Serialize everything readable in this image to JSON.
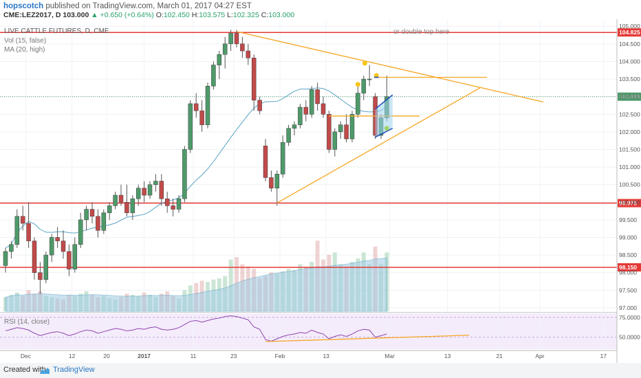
{
  "header": {
    "author": "hopscotch",
    "published_text": "published on TradingView.com, March 01, 2017 04:27 EST",
    "symbol": "CME:LEZ2017, D",
    "last": "103.000",
    "change": "▲ +0.650 (+0.64%)",
    "ohlc": {
      "o_label": "O:",
      "o": "102.450",
      "h_label": "H:",
      "h": "103.575",
      "l_label": "L:",
      "l": "102.325",
      "c_label": "C:",
      "c": "103.000"
    }
  },
  "legend": {
    "title": "LIVE CATTLE FUTURES, D, CME",
    "vol": "Vol (15, false)",
    "ma": "MA (20, high)",
    "rsi": "RSI (14, close)"
  },
  "annotation": "or double top here",
  "footer": {
    "created_with": "Created with",
    "brand": "TradingView"
  },
  "colors": {
    "up": "#4e9a6a",
    "down": "#c24a4a",
    "level": "#e53935",
    "trend": "#f5a623",
    "ma": "#5aa3c4",
    "rsi": "#8e44ad",
    "dot": "#f5c518"
  },
  "chart_data": {
    "type": "candlestick",
    "title": "LIVE CATTLE FUTURES, D, CME",
    "x_tick_labels": [
      "Dec",
      "12",
      "20",
      "2017",
      "11",
      "23",
      "Feb",
      "13",
      "Mar",
      "13",
      "21",
      "Apr",
      "17"
    ],
    "y_tick_labels": [
      "105.000",
      "104.500",
      "104.000",
      "103.500",
      "103.000",
      "102.500",
      "102.000",
      "101.500",
      "101.000",
      "100.500",
      "100.000",
      "99.500",
      "99.000",
      "98.500",
      "98.000",
      "97.500",
      "97.000"
    ],
    "ylim": [
      96.9,
      105.2
    ],
    "horizontal_levels": [
      "104.825",
      "99.975",
      "98.150"
    ],
    "last_price": "103.000",
    "candles": [
      [
        98.2,
        98.7,
        98.0,
        98.6
      ],
      [
        98.6,
        98.9,
        98.4,
        98.8
      ],
      [
        98.8,
        99.8,
        98.7,
        99.6
      ],
      [
        99.6,
        99.9,
        99.2,
        99.4
      ],
      [
        99.4,
        100.0,
        98.7,
        98.9
      ],
      [
        98.9,
        99.0,
        97.8,
        98.0
      ],
      [
        98.0,
        98.3,
        97.4,
        97.8
      ],
      [
        97.8,
        98.6,
        97.7,
        98.5
      ],
      [
        98.5,
        99.1,
        98.3,
        99.0
      ],
      [
        99.0,
        99.3,
        98.7,
        98.9
      ],
      [
        98.9,
        99.2,
        98.4,
        98.6
      ],
      [
        98.6,
        98.8,
        97.9,
        98.1
      ],
      [
        98.1,
        99.0,
        98.0,
        98.8
      ],
      [
        98.8,
        99.7,
        98.7,
        99.5
      ],
      [
        99.5,
        99.9,
        99.2,
        99.8
      ],
      [
        99.8,
        100.0,
        99.4,
        99.6
      ],
      [
        99.6,
        99.8,
        99.0,
        99.2
      ],
      [
        99.2,
        99.8,
        99.1,
        99.7
      ],
      [
        99.7,
        100.0,
        99.5,
        99.9
      ],
      [
        99.9,
        100.3,
        99.8,
        100.2
      ],
      [
        100.2,
        100.5,
        99.9,
        100.0
      ],
      [
        100.0,
        100.5,
        99.6,
        99.7
      ],
      [
        99.7,
        100.2,
        99.5,
        100.1
      ],
      [
        100.1,
        100.5,
        99.9,
        100.4
      ],
      [
        100.4,
        100.6,
        100.0,
        100.2
      ],
      [
        100.2,
        100.6,
        100.1,
        100.5
      ],
      [
        100.5,
        100.8,
        100.3,
        100.6
      ],
      [
        100.6,
        100.8,
        99.9,
        100.1
      ],
      [
        100.1,
        100.3,
        99.7,
        99.9
      ],
      [
        99.9,
        100.1,
        99.6,
        99.8
      ],
      [
        99.8,
        100.2,
        99.7,
        100.1
      ],
      [
        100.1,
        101.6,
        100.0,
        101.5
      ],
      [
        101.5,
        102.9,
        101.4,
        102.8
      ],
      [
        102.8,
        103.1,
        102.4,
        102.6
      ],
      [
        102.6,
        102.9,
        102.0,
        102.2
      ],
      [
        102.2,
        103.4,
        102.1,
        103.3
      ],
      [
        103.3,
        104.0,
        103.2,
        103.9
      ],
      [
        103.9,
        104.3,
        103.5,
        104.2
      ],
      [
        104.2,
        104.7,
        103.8,
        104.5
      ],
      [
        104.5,
        104.9,
        104.3,
        104.8
      ],
      [
        104.8,
        104.9,
        104.4,
        104.5
      ],
      [
        104.5,
        104.7,
        104.1,
        104.3
      ],
      [
        104.3,
        104.5,
        103.9,
        104.1
      ],
      [
        104.1,
        104.2,
        102.6,
        102.9
      ],
      [
        102.9,
        103.0,
        102.5,
        102.6
      ],
      [
        101.6,
        101.8,
        100.6,
        100.7
      ],
      [
        100.7,
        100.9,
        100.3,
        100.4
      ],
      [
        100.4,
        100.9,
        99.9,
        100.8
      ],
      [
        100.8,
        101.9,
        100.7,
        101.7
      ],
      [
        101.7,
        102.2,
        101.6,
        102.1
      ],
      [
        102.1,
        102.3,
        101.9,
        102.2
      ],
      [
        102.2,
        102.8,
        102.1,
        102.7
      ],
      [
        102.7,
        102.9,
        102.3,
        102.5
      ],
      [
        102.5,
        103.3,
        102.4,
        103.2
      ],
      [
        103.2,
        103.4,
        102.6,
        102.8
      ],
      [
        102.8,
        103.0,
        102.4,
        102.5
      ],
      [
        102.5,
        102.6,
        101.4,
        101.5
      ],
      [
        101.5,
        102.1,
        101.3,
        102.0
      ],
      [
        102.0,
        102.3,
        101.8,
        102.2
      ],
      [
        102.2,
        102.5,
        101.7,
        101.8
      ],
      [
        101.8,
        102.6,
        101.7,
        102.5
      ],
      [
        102.5,
        103.3,
        102.4,
        103.1
      ],
      [
        103.1,
        103.6,
        102.9,
        103.5
      ],
      [
        103.5,
        103.9,
        103.3,
        103.5
      ],
      [
        103.0,
        103.1,
        101.8,
        101.9
      ],
      [
        101.9,
        102.5,
        101.8,
        102.4
      ],
      [
        102.4,
        103.6,
        102.3,
        103.0
      ]
    ],
    "volume": [
      12,
      14,
      16,
      13,
      18,
      15,
      17,
      13,
      12,
      11,
      10,
      14,
      13,
      15,
      17,
      14,
      12,
      13,
      11,
      10,
      12,
      15,
      14,
      13,
      16,
      14,
      12,
      15,
      17,
      13,
      11,
      18,
      22,
      24,
      26,
      25,
      27,
      28,
      30,
      44,
      46,
      40,
      38,
      36,
      28,
      30,
      33,
      32,
      34,
      36,
      35,
      40,
      38,
      42,
      60,
      44,
      48,
      50,
      40,
      38,
      42,
      45,
      50,
      40,
      55,
      40,
      50
    ],
    "volume_ma_label": "Vol (15, false)",
    "rsi": {
      "label": "RSI (14, close)",
      "y_tick_labels": [
        "75.0000",
        "50.0000"
      ],
      "values": [
        58,
        60,
        62,
        61,
        59,
        55,
        52,
        54,
        56,
        57,
        55,
        52,
        54,
        57,
        59,
        58,
        55,
        57,
        59,
        61,
        60,
        58,
        59,
        61,
        60,
        62,
        63,
        60,
        59,
        60,
        62,
        66,
        70,
        71,
        69,
        71,
        73,
        74,
        76,
        77,
        76,
        74,
        72,
        63,
        60,
        47,
        45,
        48,
        51,
        53,
        54,
        56,
        55,
        59,
        56,
        54,
        48,
        51,
        53,
        51,
        54,
        58,
        60,
        59,
        50,
        52,
        54
      ]
    }
  }
}
